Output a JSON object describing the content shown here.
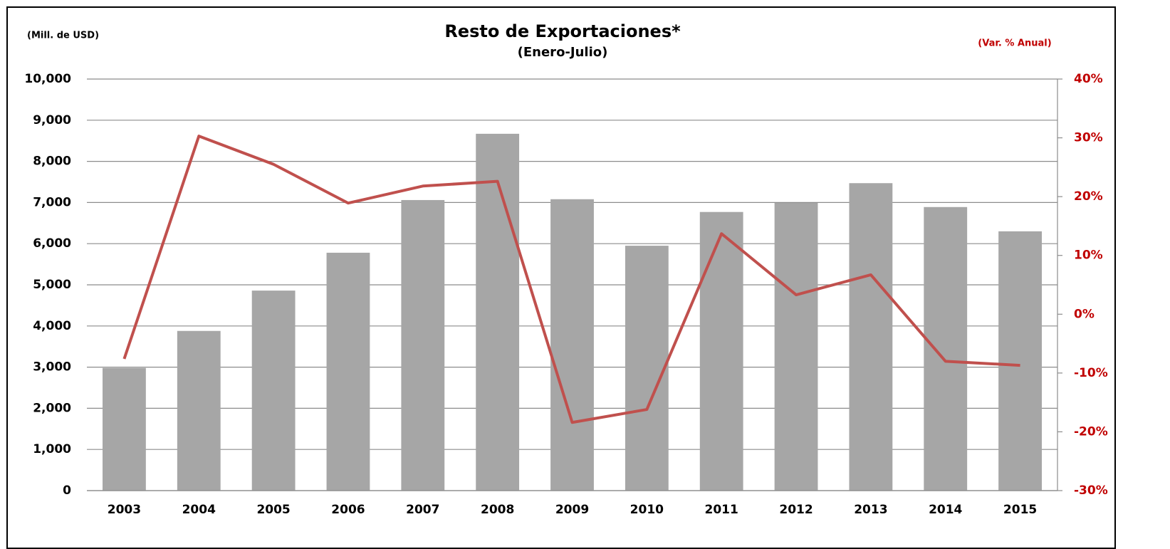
{
  "chart_data": {
    "type": "bar",
    "title": "Resto de Exportaciones*",
    "subtitle": "(Enero-Julio)",
    "y_label": "(Mill. de USD)",
    "y2_label": "(Var. % Anual)",
    "categories": [
      "2003",
      "2004",
      "2005",
      "2006",
      "2007",
      "2008",
      "2009",
      "2010",
      "2011",
      "2012",
      "2013",
      "2014",
      "2015"
    ],
    "series": [
      {
        "type": "bar",
        "color": "#a6a6a6",
        "values": [
          2980,
          3880,
          4860,
          5780,
          7060,
          8670,
          7080,
          5950,
          6770,
          6990,
          7470,
          6890,
          6300
        ]
      },
      {
        "type": "line",
        "axis": "y2",
        "color": "#c0504d",
        "values": [
          -7.6,
          30.3,
          25.5,
          18.9,
          21.8,
          22.6,
          -18.4,
          -16.2,
          13.7,
          3.3,
          6.7,
          -8.0,
          -8.7
        ]
      }
    ],
    "ylim": [
      0,
      10000
    ],
    "yticks": [
      0,
      {
        "value": 1000,
        "label": "1,000"
      },
      {
        "value": 2000,
        "label": "2,000"
      },
      {
        "value": 3000,
        "label": "3,000"
      },
      {
        "value": 4000,
        "label": "4,000"
      },
      {
        "value": 5000,
        "label": "5,000"
      },
      {
        "value": 6000,
        "label": "6,000"
      },
      {
        "value": 7000,
        "label": "7,000"
      },
      {
        "value": 8000,
        "label": "8,000"
      },
      {
        "value": 9000,
        "label": "9,000"
      },
      {
        "value": 10000,
        "label": "10,000"
      }
    ],
    "y2lim": [
      -30,
      40
    ],
    "y2ticks": [
      {
        "value": -30,
        "label": "-30%"
      },
      {
        "value": -20,
        "label": "-20%"
      },
      {
        "value": -10,
        "label": "-10%"
      },
      {
        "value": 0,
        "label": "0%"
      },
      {
        "value": 10,
        "label": "10%"
      },
      {
        "value": 20,
        "label": "20%"
      },
      {
        "value": 30,
        "label": "30%"
      },
      {
        "value": 40,
        "label": "40%"
      }
    ],
    "y2_color": "#c00000",
    "grid": true
  }
}
